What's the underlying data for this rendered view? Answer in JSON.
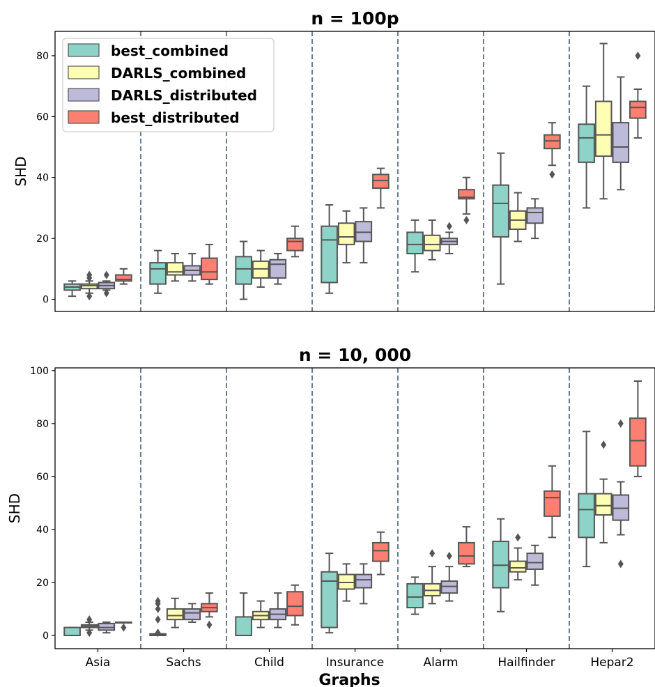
{
  "chart_data": [
    {
      "type": "box",
      "title": "n = 100p",
      "ylabel": "SHD",
      "xlabel": "",
      "ylim": [
        -4,
        88
      ],
      "yticks": [
        0,
        20,
        40,
        60,
        80
      ],
      "grid": false,
      "legend_placement": "top-left",
      "group_separators": "dashed",
      "categories": [
        "Asia",
        "Sachs",
        "Child",
        "Insurance",
        "Alarm",
        "Hailfinder",
        "Hepar2"
      ],
      "series": [
        {
          "name": "best_combined",
          "color": "#8dd3c7",
          "boxes": [
            {
              "min": 1,
              "q1": 3,
              "median": 4,
              "q3": 5,
              "max": 6,
              "outliers": []
            },
            {
              "min": 2,
              "q1": 5,
              "median": 10,
              "q3": 12,
              "max": 16,
              "outliers": []
            },
            {
              "min": 0,
              "q1": 5,
              "median": 10,
              "q3": 14,
              "max": 19,
              "outliers": []
            },
            {
              "min": 2,
              "q1": 5.5,
              "median": 19.5,
              "q3": 24,
              "max": 31,
              "outliers": []
            },
            {
              "min": 9,
              "q1": 15,
              "median": 18,
              "q3": 22,
              "max": 26,
              "outliers": []
            },
            {
              "min": 5,
              "q1": 20.5,
              "median": 31.5,
              "q3": 37.5,
              "max": 48,
              "outliers": []
            },
            {
              "min": 30,
              "q1": 45,
              "median": 53,
              "q3": 57.5,
              "max": 70,
              "outliers": []
            }
          ]
        },
        {
          "name": "DARLS_combined",
          "color": "#ffffb3",
          "boxes": [
            {
              "min": 2,
              "q1": 3.5,
              "median": 4.5,
              "q3": 5,
              "max": 6,
              "outliers": [
                1,
                7,
                8
              ]
            },
            {
              "min": 6,
              "q1": 8,
              "median": 9,
              "q3": 12,
              "max": 15,
              "outliers": []
            },
            {
              "min": 4,
              "q1": 7,
              "median": 10,
              "q3": 12.5,
              "max": 16,
              "outliers": []
            },
            {
              "min": 12,
              "q1": 18,
              "median": 20.5,
              "q3": 25,
              "max": 29,
              "outliers": []
            },
            {
              "min": 13,
              "q1": 16,
              "median": 18,
              "q3": 21,
              "max": 26,
              "outliers": []
            },
            {
              "min": 19,
              "q1": 23,
              "median": 26,
              "q3": 29,
              "max": 35,
              "outliers": []
            },
            {
              "min": 33,
              "q1": 47,
              "median": 54,
              "q3": 65,
              "max": 84,
              "outliers": []
            }
          ]
        },
        {
          "name": "DARLS_distributed",
          "color": "#bebada",
          "boxes": [
            {
              "min": 3,
              "q1": 3.5,
              "median": 4.5,
              "q3": 5.5,
              "max": 6,
              "outliers": [
                2,
                8
              ]
            },
            {
              "min": 6,
              "q1": 8,
              "median": 9.5,
              "q3": 11,
              "max": 15,
              "outliers": []
            },
            {
              "min": 5,
              "q1": 7,
              "median": 11.5,
              "q3": 13,
              "max": 15,
              "outliers": []
            },
            {
              "min": 12,
              "q1": 19,
              "median": 22,
              "q3": 25.5,
              "max": 30,
              "outliers": []
            },
            {
              "min": 15,
              "q1": 18,
              "median": 19,
              "q3": 20,
              "max": 22,
              "outliers": [
                24
              ]
            },
            {
              "min": 20,
              "q1": 25,
              "median": 28.5,
              "q3": 30,
              "max": 33,
              "outliers": []
            },
            {
              "min": 36,
              "q1": 45,
              "median": 50,
              "q3": 58,
              "max": 73,
              "outliers": []
            }
          ]
        },
        {
          "name": "best_distributed",
          "color": "#fb8072",
          "boxes": [
            {
              "min": 5,
              "q1": 6,
              "median": 6.5,
              "q3": 8,
              "max": 10,
              "outliers": []
            },
            {
              "min": 5,
              "q1": 6.5,
              "median": 9,
              "q3": 13.5,
              "max": 18,
              "outliers": []
            },
            {
              "min": 14,
              "q1": 16,
              "median": 19,
              "q3": 20,
              "max": 24,
              "outliers": []
            },
            {
              "min": 30,
              "q1": 36.5,
              "median": 39,
              "q3": 41,
              "max": 43,
              "outliers": []
            },
            {
              "min": 28,
              "q1": 33,
              "median": 33.5,
              "q3": 36,
              "max": 40,
              "outliers": [
                26
              ]
            },
            {
              "min": 44,
              "q1": 49.5,
              "median": 52,
              "q3": 54,
              "max": 58,
              "outliers": [
                41
              ]
            },
            {
              "min": 53,
              "q1": 59.5,
              "median": 63,
              "q3": 65,
              "max": 69,
              "outliers": [
                80
              ]
            }
          ]
        }
      ]
    },
    {
      "type": "box",
      "title": "n = 10, 000",
      "ylabel": "SHD",
      "xlabel": "Graphs",
      "ylim": [
        -5,
        101
      ],
      "yticks": [
        0,
        20,
        40,
        60,
        80,
        100
      ],
      "grid": false,
      "group_separators": "dashed",
      "categories": [
        "Asia",
        "Sachs",
        "Child",
        "Insurance",
        "Alarm",
        "Hailfinder",
        "Hepar2"
      ],
      "series": [
        {
          "name": "best_combined",
          "color": "#8dd3c7",
          "boxes": [
            {
              "min": 0,
              "q1": 0,
              "median": 0,
              "q3": 3,
              "max": 3,
              "outliers": []
            },
            {
              "min": 0,
              "q1": 0,
              "median": 0.3,
              "q3": 0.6,
              "max": 0.6,
              "outliers": [
                1,
                6,
                10,
                12,
                13
              ]
            },
            {
              "min": 0,
              "q1": 0,
              "median": 0,
              "q3": 7,
              "max": 16,
              "outliers": []
            },
            {
              "min": 1,
              "q1": 3,
              "median": 20.5,
              "q3": 24,
              "max": 31,
              "outliers": []
            },
            {
              "min": 8,
              "q1": 10.5,
              "median": 14.5,
              "q3": 19.5,
              "max": 22,
              "outliers": []
            },
            {
              "min": 9,
              "q1": 18,
              "median": 26.5,
              "q3": 35.5,
              "max": 44,
              "outliers": []
            },
            {
              "min": 26,
              "q1": 37,
              "median": 47.5,
              "q3": 53.5,
              "max": 77,
              "outliers": []
            }
          ]
        },
        {
          "name": "DARLS_combined",
          "color": "#ffffb3",
          "boxes": [
            {
              "min": 2,
              "q1": 3,
              "median": 3.5,
              "q3": 4,
              "max": 5,
              "outliers": [
                1,
                6
              ]
            },
            {
              "min": 3,
              "q1": 6,
              "median": 7.5,
              "q3": 10,
              "max": 14,
              "outliers": []
            },
            {
              "min": 3,
              "q1": 6,
              "median": 7.5,
              "q3": 9,
              "max": 13,
              "outliers": []
            },
            {
              "min": 13,
              "q1": 17.5,
              "median": 20,
              "q3": 23,
              "max": 27,
              "outliers": []
            },
            {
              "min": 12,
              "q1": 15,
              "median": 17,
              "q3": 19.5,
              "max": 26,
              "outliers": [
                31
              ]
            },
            {
              "min": 21,
              "q1": 24,
              "median": 25.5,
              "q3": 28,
              "max": 33,
              "outliers": [
                37
              ]
            },
            {
              "min": 35,
              "q1": 45.5,
              "median": 49,
              "q3": 53.5,
              "max": 59,
              "outliers": [
                72
              ]
            }
          ]
        },
        {
          "name": "DARLS_distributed",
          "color": "#bebada",
          "boxes": [
            {
              "min": 1,
              "q1": 2,
              "median": 3,
              "q3": 4.5,
              "max": 5,
              "outliers": []
            },
            {
              "min": 5,
              "q1": 6,
              "median": 8.5,
              "q3": 10,
              "max": 12,
              "outliers": []
            },
            {
              "min": 3,
              "q1": 6,
              "median": 8,
              "q3": 10,
              "max": 16,
              "outliers": []
            },
            {
              "min": 12,
              "q1": 18,
              "median": 21,
              "q3": 23,
              "max": 27,
              "outliers": []
            },
            {
              "min": 13,
              "q1": 16,
              "median": 18.5,
              "q3": 20.5,
              "max": 26,
              "outliers": [
                30
              ]
            },
            {
              "min": 19,
              "q1": 25,
              "median": 27.5,
              "q3": 31,
              "max": 34,
              "outliers": []
            },
            {
              "min": 38,
              "q1": 43.5,
              "median": 48,
              "q3": 53,
              "max": 58,
              "outliers": [
                27,
                80
              ]
            }
          ]
        },
        {
          "name": "best_distributed",
          "color": "#fb8072",
          "boxes": [
            {
              "min": 5,
              "q1": 5,
              "median": 5,
              "q3": 5,
              "max": 5,
              "outliers": [
                3
              ]
            },
            {
              "min": 7,
              "q1": 9,
              "median": 10.5,
              "q3": 12,
              "max": 16,
              "outliers": [
                4
              ]
            },
            {
              "min": 4,
              "q1": 7.5,
              "median": 11,
              "q3": 16.5,
              "max": 19,
              "outliers": []
            },
            {
              "min": 23,
              "q1": 28,
              "median": 32,
              "q3": 35,
              "max": 39,
              "outliers": []
            },
            {
              "min": 26,
              "q1": 27,
              "median": 30,
              "q3": 35,
              "max": 41,
              "outliers": []
            },
            {
              "min": 37,
              "q1": 45,
              "median": 52,
              "q3": 54.5,
              "max": 64,
              "outliers": []
            },
            {
              "min": 60,
              "q1": 64,
              "median": 73.5,
              "q3": 82,
              "max": 96,
              "outliers": []
            }
          ]
        }
      ]
    }
  ]
}
